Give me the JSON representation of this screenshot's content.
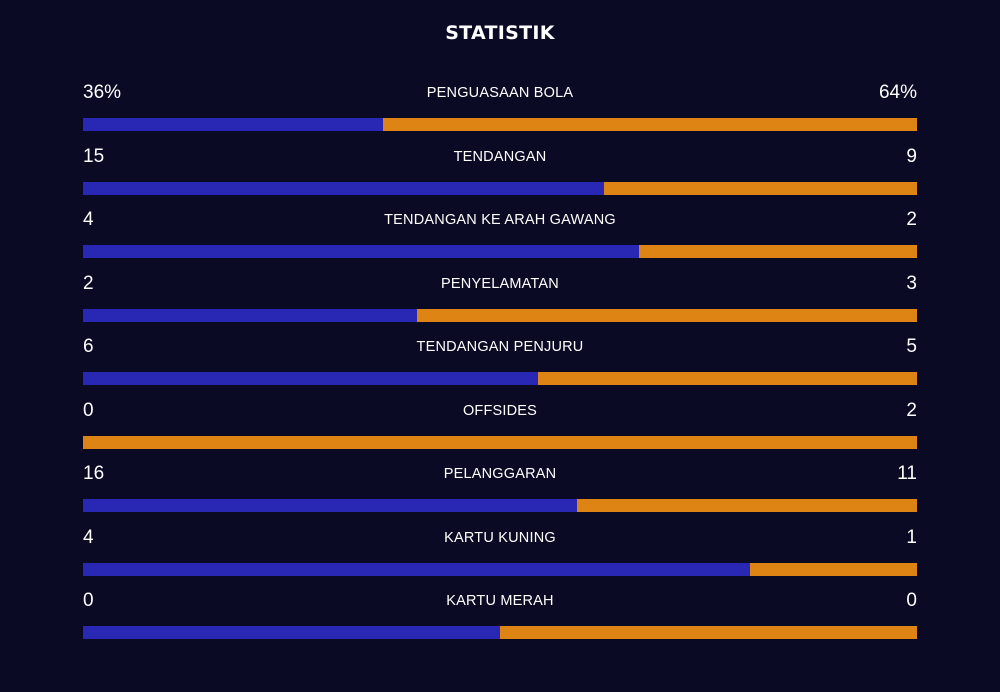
{
  "title": "STATISTIK",
  "colors": {
    "background": "#0a0a24",
    "home": "#2828b4",
    "away": "#dd8414"
  },
  "stats": [
    {
      "label": "PENGUASAAN BOLA",
      "home": "36%",
      "away": "64%",
      "home_share": 0.36
    },
    {
      "label": "TENDANGAN",
      "home": "15",
      "away": "9",
      "home_share": 0.625
    },
    {
      "label": "TENDANGAN KE ARAH GAWANG",
      "home": "4",
      "away": "2",
      "home_share": 0.6667
    },
    {
      "label": "PENYELAMATAN",
      "home": "2",
      "away": "3",
      "home_share": 0.4
    },
    {
      "label": "TENDANGAN PENJURU",
      "home": "6",
      "away": "5",
      "home_share": 0.5455
    },
    {
      "label": "OFFSIDES",
      "home": "0",
      "away": "2",
      "home_share": 0.0
    },
    {
      "label": "PELANGGARAN",
      "home": "16",
      "away": "11",
      "home_share": 0.5926
    },
    {
      "label": "KARTU KUNING",
      "home": "4",
      "away": "1",
      "home_share": 0.8
    },
    {
      "label": "KARTU MERAH",
      "home": "0",
      "away": "0",
      "home_share": 0.5
    }
  ]
}
